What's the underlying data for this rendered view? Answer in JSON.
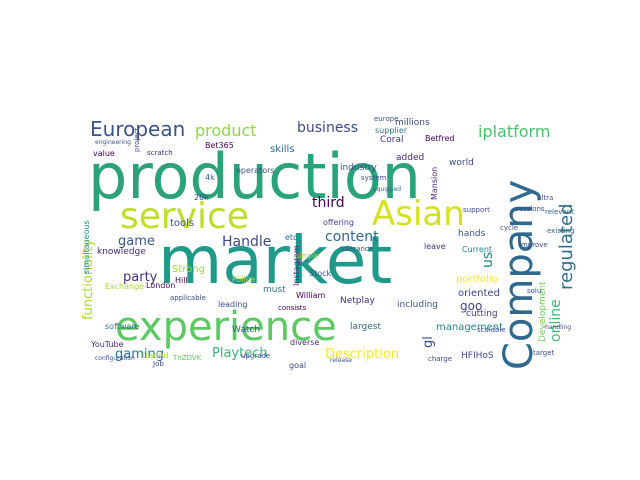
{
  "words": [
    {
      "text": "production",
      "color": "#2aa37a",
      "vertical": false
    },
    {
      "text": "market",
      "color": "#1f9a8a",
      "vertical": false
    },
    {
      "text": "experience",
      "color": "#5dc963",
      "vertical": false
    },
    {
      "text": "service",
      "color": "#bddf26",
      "vertical": false
    },
    {
      "text": "Asian",
      "color": "#d2e21b",
      "vertical": false
    },
    {
      "text": "Company",
      "color": "#31688e",
      "vertical": true
    },
    {
      "text": "European",
      "color": "#3b528b",
      "vertical": false
    },
    {
      "text": "product",
      "color": "#8fd744",
      "vertical": false
    },
    {
      "text": "business",
      "color": "#3e4a89",
      "vertical": false
    },
    {
      "text": "iplatform",
      "color": "#4ac16d",
      "vertical": false
    },
    {
      "text": "online",
      "color": "#3aba76",
      "vertical": true
    },
    {
      "text": "regulated",
      "color": "#2d708e",
      "vertical": true
    },
    {
      "text": "third",
      "color": "#440154",
      "vertical": false
    },
    {
      "text": "content",
      "color": "#31688e",
      "vertical": false
    },
    {
      "text": "game",
      "color": "#39568c",
      "vertical": false
    },
    {
      "text": "Handle",
      "color": "#3e4989",
      "vertical": false
    },
    {
      "text": "party",
      "color": "#46337e",
      "vertical": false
    },
    {
      "text": "functionality",
      "color": "#a8db34",
      "vertical": true
    },
    {
      "text": "gaming",
      "color": "#2c728e",
      "vertical": false
    },
    {
      "text": "Playtech",
      "color": "#35b779",
      "vertical": false
    },
    {
      "text": "Description",
      "color": "#fde725",
      "vertical": false
    },
    {
      "text": "gl",
      "color": "#3b528b",
      "vertical": true
    },
    {
      "text": "goo",
      "color": "#414487",
      "vertical": false
    },
    {
      "text": "us",
      "color": "#26828e",
      "vertical": true
    },
    {
      "text": "management",
      "color": "#25858e",
      "vertical": false
    },
    {
      "text": "Development",
      "color": "#6ece58",
      "vertical": true
    },
    {
      "text": "portfolio",
      "color": "#fde725",
      "vertical": false
    },
    {
      "text": "oriented",
      "color": "#3e4a89",
      "vertical": false
    },
    {
      "text": "cutting",
      "color": "#443983",
      "vertical": false
    },
    {
      "text": "simultaneous",
      "color": "#21918c",
      "vertical": true
    },
    {
      "text": "knowledge",
      "color": "#482878",
      "vertical": false
    },
    {
      "text": "tools",
      "color": "#3b528b",
      "vertical": false
    },
    {
      "text": "Strong",
      "color": "#a0da39",
      "vertical": false
    },
    {
      "text": "software",
      "color": "#2e6e8e",
      "vertical": false
    },
    {
      "text": "Instagram",
      "color": "#482173",
      "vertical": true
    },
    {
      "text": "must",
      "color": "#2a788e",
      "vertical": false
    },
    {
      "text": "William",
      "color": "#440154",
      "vertical": false
    },
    {
      "text": "Watch",
      "color": "#39568c",
      "vertical": false
    },
    {
      "text": "leading",
      "color": "#3e4989",
      "vertical": false
    },
    {
      "text": "offering",
      "color": "#414487",
      "vertical": false
    },
    {
      "text": "industry",
      "color": "#3b528b",
      "vertical": false
    },
    {
      "text": "skills",
      "color": "#31688e",
      "vertical": false
    },
    {
      "text": "Mansion",
      "color": "#482878",
      "vertical": true
    },
    {
      "text": "hands",
      "color": "#3b528b",
      "vertical": false
    },
    {
      "text": "Current",
      "color": "#26828e",
      "vertical": false
    },
    {
      "text": "added",
      "color": "#481f70",
      "vertical": false
    },
    {
      "text": "world",
      "color": "#3e4989",
      "vertical": false
    },
    {
      "text": "Netplay",
      "color": "#46337e",
      "vertical": false
    },
    {
      "text": "including",
      "color": "#3b528b",
      "vertical": false
    },
    {
      "text": "largest",
      "color": "#31688e",
      "vertical": false
    },
    {
      "text": "sessions",
      "color": "#3b528b",
      "vertical": false
    },
    {
      "text": "YouTube",
      "color": "#482878",
      "vertical": false
    },
    {
      "text": "London",
      "color": "#440154",
      "vertical": false
    },
    {
      "text": "Hill",
      "color": "#440154",
      "vertical": false
    },
    {
      "text": "Exchange",
      "color": "#a8db34",
      "vertical": false
    },
    {
      "text": "Coral",
      "color": "#46337e",
      "vertical": false
    },
    {
      "text": "Betfred",
      "color": "#440154",
      "vertical": false
    },
    {
      "text": "Bet365",
      "color": "#440154",
      "vertical": false
    },
    {
      "text": "millions",
      "color": "#3e4a89",
      "vertical": false
    },
    {
      "text": "supplier",
      "color": "#2a788e",
      "vertical": false
    },
    {
      "text": "scratch",
      "color": "#482878",
      "vertical": false
    },
    {
      "text": "value",
      "color": "#440154",
      "vertical": false
    },
    {
      "text": "project",
      "color": "#3b528b",
      "vertical": true
    },
    {
      "text": "4k",
      "color": "#31688e",
      "vertical": false
    },
    {
      "text": "traded",
      "color": "#a8db34",
      "vertical": false
    },
    {
      "text": "Job",
      "color": "#414487",
      "vertical": false
    },
    {
      "text": "diverse",
      "color": "#482878",
      "vertical": false
    },
    {
      "text": "goal",
      "color": "#3e4a89",
      "vertical": false
    },
    {
      "text": "consists",
      "color": "#440154",
      "vertical": false
    },
    {
      "text": "Stock",
      "color": "#3b528b",
      "vertical": false
    },
    {
      "text": "etc",
      "color": "#31688e",
      "vertical": false
    },
    {
      "text": "tolerance",
      "color": "#3b528b",
      "vertical": false
    },
    {
      "text": "leave",
      "color": "#46337e",
      "vertical": false
    },
    {
      "text": "solu",
      "color": "#3b528b",
      "vertical": false
    },
    {
      "text": "HFIHoS",
      "color": "#3e4a89",
      "vertical": false
    },
    {
      "text": "Police",
      "color": "#a8db34",
      "vertical": false
    },
    {
      "text": "operators",
      "color": "#3b528b",
      "vertical": false
    },
    {
      "text": "europe",
      "color": "#3b528b",
      "vertical": false
    },
    {
      "text": "simple",
      "color": "#a0da39",
      "vertical": false
    },
    {
      "text": "upgrade",
      "color": "#3b528b",
      "vertical": false
    },
    {
      "text": "support",
      "color": "#3e4a89",
      "vertical": false
    },
    {
      "text": "improve",
      "color": "#3b528b",
      "vertical": false
    },
    {
      "text": "relevant",
      "color": "#31688e",
      "vertical": false
    },
    {
      "text": "applicable",
      "color": "#3e4989",
      "vertical": false
    },
    {
      "text": "TnZDVK",
      "color": "#5dc963",
      "vertical": false
    },
    {
      "text": "target",
      "color": "#3b528b",
      "vertical": false
    },
    {
      "text": "scalable",
      "color": "#3b528b",
      "vertical": false
    },
    {
      "text": "system",
      "color": "#3b528b",
      "vertical": false
    },
    {
      "text": "20k",
      "color": "#3e4a89",
      "vertical": false
    },
    {
      "text": "cycle",
      "color": "#3b528b",
      "vertical": false
    },
    {
      "text": "ultra",
      "color": "#3b528b",
      "vertical": false
    },
    {
      "text": "existing",
      "color": "#31688e",
      "vertical": false
    },
    {
      "text": "handling",
      "color": "#3e4989",
      "vertical": false
    },
    {
      "text": "charge",
      "color": "#3b528b",
      "vertical": false
    },
    {
      "text": "equipped",
      "color": "#31688e",
      "vertical": false
    },
    {
      "text": "release",
      "color": "#3b528b",
      "vertical": false
    },
    {
      "text": "configuration",
      "color": "#3b528b",
      "vertical": false
    },
    {
      "text": "engineering",
      "color": "#3b528b",
      "vertical": false
    }
  ]
}
